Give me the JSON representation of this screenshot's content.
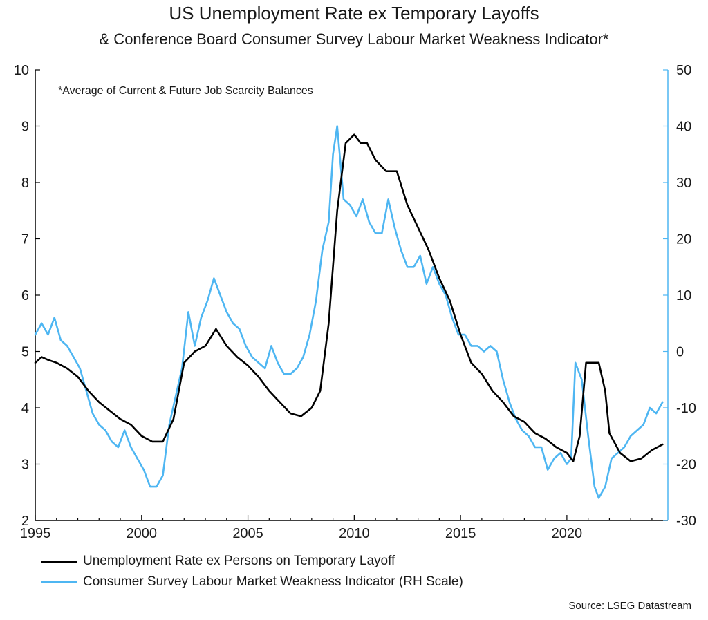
{
  "title": "US Unemployment Rate ex Temporary Layoffs",
  "subtitle": "& Conference Board Consumer Survey Labour Market Weakness Indicator*",
  "source": "Source: LSEG Datastream",
  "chart_data": {
    "type": "line",
    "annotation": "*Average of Current & Future Job Scarcity Balances",
    "x_ticks": [
      "1995",
      "2000",
      "2005",
      "2010",
      "2015",
      "2020"
    ],
    "xlim": [
      1995,
      2024.75
    ],
    "left_axis": {
      "ylim": [
        2,
        10
      ],
      "ticks": [
        "2",
        "3",
        "4",
        "5",
        "6",
        "7",
        "8",
        "9",
        "10"
      ]
    },
    "right_axis": {
      "ylim": [
        -30,
        50
      ],
      "ticks": [
        "-30",
        "-20",
        "-10",
        "0",
        "10",
        "20",
        "30",
        "40",
        "50"
      ]
    },
    "series": [
      {
        "name": "Unemployment Rate ex Persons on Temporary Layoff",
        "axis": "left",
        "color": "#000000",
        "x": [
          1995.0,
          1995.3,
          1995.6,
          1996.0,
          1996.5,
          1997.0,
          1997.5,
          1998.0,
          1998.5,
          1999.0,
          1999.5,
          2000.0,
          2000.5,
          2001.0,
          2001.5,
          2002.0,
          2002.5,
          2003.0,
          2003.5,
          2004.0,
          2004.5,
          2005.0,
          2005.5,
          2006.0,
          2006.5,
          2007.0,
          2007.5,
          2008.0,
          2008.4,
          2008.8,
          2009.2,
          2009.6,
          2010.0,
          2010.3,
          2010.6,
          2011.0,
          2011.5,
          2012.0,
          2012.5,
          2013.0,
          2013.5,
          2014.0,
          2014.5,
          2015.0,
          2015.5,
          2016.0,
          2016.5,
          2017.0,
          2017.5,
          2018.0,
          2018.5,
          2019.0,
          2019.5,
          2020.0,
          2020.3,
          2020.6,
          2020.9,
          2021.2,
          2021.5,
          2021.8,
          2022.0,
          2022.5,
          2023.0,
          2023.5,
          2024.0,
          2024.5
        ],
        "values": [
          4.8,
          4.9,
          4.85,
          4.8,
          4.7,
          4.55,
          4.3,
          4.1,
          3.95,
          3.8,
          3.7,
          3.5,
          3.4,
          3.4,
          3.8,
          4.8,
          5.0,
          5.1,
          5.4,
          5.1,
          4.9,
          4.75,
          4.55,
          4.3,
          4.1,
          3.9,
          3.85,
          4.0,
          4.3,
          5.5,
          7.5,
          8.7,
          8.85,
          8.7,
          8.7,
          8.4,
          8.2,
          8.2,
          7.6,
          7.2,
          6.8,
          6.3,
          5.9,
          5.3,
          4.8,
          4.6,
          4.3,
          4.1,
          3.85,
          3.75,
          3.55,
          3.45,
          3.3,
          3.2,
          3.05,
          3.5,
          4.8,
          4.8,
          4.8,
          4.3,
          3.55,
          3.2,
          3.05,
          3.1,
          3.25,
          3.35
        ]
      },
      {
        "name": "Consumer Survey Labour Market Weakness Indicator (RH Scale)",
        "axis": "right",
        "color": "#4eb6f2",
        "x": [
          1995.0,
          1995.3,
          1995.6,
          1995.9,
          1996.2,
          1996.5,
          1996.8,
          1997.1,
          1997.4,
          1997.7,
          1998.0,
          1998.3,
          1998.6,
          1998.9,
          1999.2,
          1999.5,
          1999.8,
          2000.1,
          2000.4,
          2000.7,
          2001.0,
          2001.3,
          2001.6,
          2001.9,
          2002.2,
          2002.5,
          2002.8,
          2003.1,
          2003.4,
          2003.7,
          2004.0,
          2004.3,
          2004.6,
          2004.9,
          2005.2,
          2005.5,
          2005.8,
          2006.1,
          2006.4,
          2006.7,
          2007.0,
          2007.3,
          2007.6,
          2007.9,
          2008.2,
          2008.5,
          2008.8,
          2009.0,
          2009.2,
          2009.5,
          2009.8,
          2010.1,
          2010.4,
          2010.7,
          2011.0,
          2011.3,
          2011.6,
          2011.9,
          2012.2,
          2012.5,
          2012.8,
          2013.1,
          2013.4,
          2013.7,
          2014.0,
          2014.3,
          2014.6,
          2014.9,
          2015.2,
          2015.5,
          2015.8,
          2016.1,
          2016.4,
          2016.7,
          2017.0,
          2017.3,
          2017.6,
          2017.9,
          2018.2,
          2018.5,
          2018.8,
          2019.1,
          2019.4,
          2019.7,
          2020.0,
          2020.2,
          2020.4,
          2020.7,
          2021.0,
          2021.3,
          2021.5,
          2021.8,
          2022.1,
          2022.4,
          2022.7,
          2023.0,
          2023.3,
          2023.6,
          2023.9,
          2024.2,
          2024.5
        ],
        "values": [
          3,
          5,
          3,
          6,
          2,
          1,
          -1,
          -3,
          -7,
          -11,
          -13,
          -14,
          -16,
          -17,
          -14,
          -17,
          -19,
          -21,
          -24,
          -24,
          -22,
          -13,
          -8,
          -3,
          7,
          1,
          6,
          9,
          13,
          10,
          7,
          5,
          4,
          1,
          -1,
          -2,
          -3,
          1,
          -2,
          -4,
          -4,
          -3,
          -1,
          3,
          9,
          18,
          23,
          35,
          40,
          27,
          26,
          24,
          27,
          23,
          21,
          21,
          27,
          22,
          18,
          15,
          15,
          17,
          12,
          15,
          12,
          10,
          6,
          3,
          3,
          1,
          1,
          0,
          1,
          0,
          -5,
          -9,
          -12,
          -14,
          -15,
          -17,
          -17,
          -21,
          -19,
          -18,
          -20,
          -19,
          -2,
          -5,
          -15,
          -24,
          -26,
          -24,
          -19,
          -18,
          -17,
          -15,
          -14,
          -13,
          -10,
          -11,
          -9
        ]
      }
    ]
  }
}
